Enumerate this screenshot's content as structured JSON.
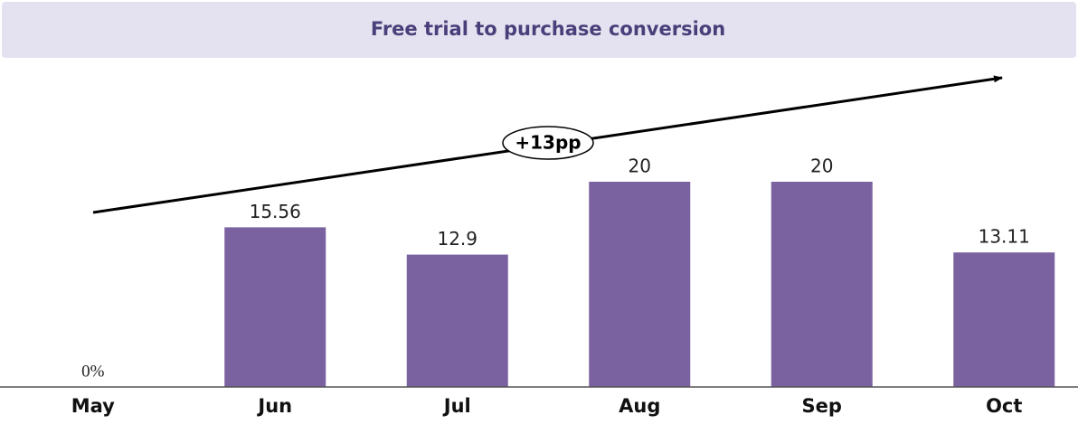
{
  "chart_data": {
    "type": "bar",
    "title": "Free trial to purchase conversion",
    "categories": [
      "May",
      "Jun",
      "Jul",
      "Aug",
      "Sep",
      "Oct"
    ],
    "values": [
      0,
      15.56,
      12.9,
      20,
      20,
      13.11
    ],
    "value_labels": [
      "0%",
      "15.56",
      "12.9",
      "20",
      "20",
      "13.11"
    ],
    "color": "#7a62a0",
    "ylim": [
      0,
      20
    ],
    "annotation": "+13pp"
  }
}
